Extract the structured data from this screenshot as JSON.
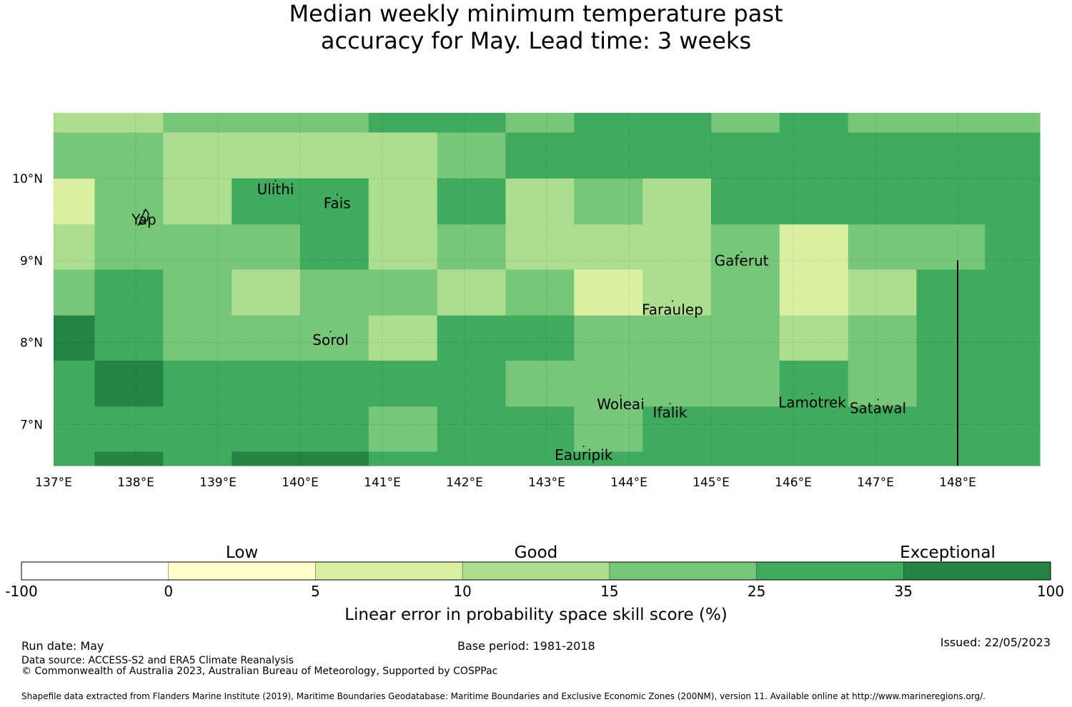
{
  "title_line1": "Median weekly minimum temperature past",
  "title_line2": "accuracy for May. Lead time: 3 weeks",
  "chart_data": {
    "type": "heatmap",
    "xlim": [
      137,
      149
    ],
    "ylim": [
      6.5,
      10.8
    ],
    "x_ticks": [
      137,
      138,
      139,
      140,
      141,
      142,
      143,
      144,
      145,
      146,
      147,
      148
    ],
    "x_tick_labels": [
      "137°E",
      "138°E",
      "139°E",
      "140°E",
      "141°E",
      "142°E",
      "143°E",
      "144°E",
      "145°E",
      "146°E",
      "147°E",
      "148°E"
    ],
    "y_ticks": [
      7,
      8,
      9,
      10
    ],
    "y_tick_labels": [
      "7°N",
      "8°N",
      "9°N",
      "10°N"
    ],
    "grid": true,
    "cell_edges_x": [
      137,
      137.5,
      138.333,
      139.167,
      140,
      140.833,
      141.667,
      142.5,
      143.333,
      144.167,
      145,
      145.833,
      146.667,
      147.5,
      148.333,
      149
    ],
    "cell_edges_y": [
      10.8,
      10.56,
      10.0,
      9.44,
      8.89,
      8.33,
      7.78,
      7.22,
      6.67,
      6.5
    ],
    "class_grid": [
      [
        3,
        3,
        4,
        4,
        4,
        5,
        5,
        4,
        5,
        5,
        4,
        5,
        4,
        4,
        4
      ],
      [
        4,
        4,
        3,
        3,
        3,
        3,
        4,
        5,
        5,
        5,
        5,
        5,
        5,
        5,
        5
      ],
      [
        2,
        4,
        3,
        5,
        5,
        3,
        5,
        3,
        4,
        3,
        5,
        5,
        5,
        5,
        5
      ],
      [
        3,
        4,
        4,
        4,
        5,
        3,
        4,
        3,
        3,
        3,
        4,
        2,
        4,
        4,
        5
      ],
      [
        4,
        5,
        4,
        3,
        4,
        4,
        3,
        4,
        2,
        3,
        4,
        2,
        3,
        5,
        5
      ],
      [
        6,
        5,
        4,
        4,
        4,
        3,
        5,
        5,
        4,
        4,
        4,
        3,
        4,
        5,
        5
      ],
      [
        5,
        6,
        5,
        5,
        5,
        5,
        5,
        4,
        4,
        4,
        4,
        5,
        4,
        5,
        5
      ],
      [
        5,
        5,
        5,
        5,
        5,
        4,
        5,
        5,
        4,
        5,
        5,
        5,
        5,
        5,
        5
      ],
      [
        5,
        6,
        5,
        6,
        6,
        5,
        5,
        5,
        5,
        5,
        5,
        5,
        5,
        5,
        5
      ]
    ],
    "islands": [
      {
        "name": "Ulithi",
        "lon": 139.7,
        "lat": 9.87
      },
      {
        "name": "Fais",
        "lon": 140.45,
        "lat": 9.7
      },
      {
        "name": "Yap",
        "lon": 138.1,
        "lat": 9.5
      },
      {
        "name": "Gaferut",
        "lon": 145.37,
        "lat": 9.0
      },
      {
        "name": "Faraulep",
        "lon": 144.53,
        "lat": 8.4
      },
      {
        "name": "Sorol",
        "lon": 140.37,
        "lat": 8.03
      },
      {
        "name": "Woleai",
        "lon": 143.9,
        "lat": 7.25
      },
      {
        "name": "Ifalik",
        "lon": 144.5,
        "lat": 7.15
      },
      {
        "name": "Lamotrek",
        "lon": 146.23,
        "lat": 7.27
      },
      {
        "name": "Satawal",
        "lon": 147.03,
        "lat": 7.2
      },
      {
        "name": "Eauripik",
        "lon": 143.45,
        "lat": 6.63
      }
    ],
    "boundary_line": {
      "lon": 148.0,
      "lat_from": 6.5,
      "lat_to": 9.0
    },
    "legend": {
      "category_labels": [
        "Low",
        "Good",
        "Exceptional"
      ],
      "boundaries": [
        "-100",
        "0",
        "5",
        "10",
        "15",
        "25",
        "35",
        "100"
      ],
      "colors": [
        "#ffffff",
        "#ffffcc",
        "#d9f0a3",
        "#addd8e",
        "#78c679",
        "#41ab5d",
        "#238443"
      ],
      "label": "Linear error in probability space skill score (%)"
    }
  },
  "footer": {
    "run_date": "Run date: May",
    "base_period": "Base period: 1981-2018",
    "issued": "Issued: 22/05/2023",
    "data_source": "Data source: ACCESS-S2 and ERA5 Climate Reanalysis",
    "copyright": "© Commonwealth of Australia 2023, Australian Bureau of Meteorology, Supported by COSPPac",
    "shapefile": "Shapefile data extracted from Flanders Marine Institute (2019), Maritime Boundaries Geodatabase: Maritime Boundaries and Exclusive Economic Zones (200NM), version 11. Available online at http://www.marineregions.org/."
  }
}
